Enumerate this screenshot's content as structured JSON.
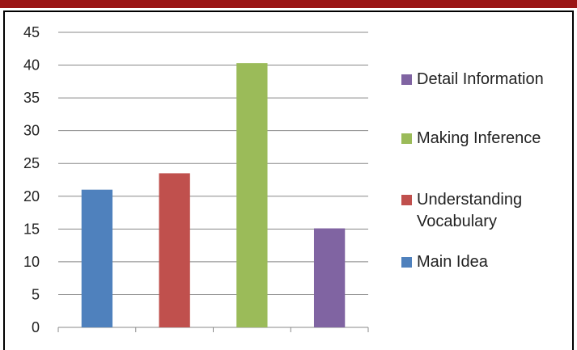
{
  "colors": {
    "top_bar": "#9b1515",
    "frame": "#000000",
    "grid": "#888888",
    "axis": "#888888"
  },
  "chart_data": {
    "type": "bar",
    "categories": [
      "Main Idea",
      "Understanding Vocabulary",
      "Making Inference",
      "Detail Information"
    ],
    "values": [
      21,
      23.5,
      40.3,
      15.1
    ],
    "colors": [
      "#4f81bd",
      "#c0504d",
      "#9bbb59",
      "#8064a2"
    ],
    "ylim": [
      0,
      45
    ],
    "yticks": [
      "0",
      "5",
      "10",
      "15",
      "20",
      "25",
      "30",
      "35",
      "40",
      "45"
    ],
    "grid": true,
    "legend_position": "right",
    "legend": [
      {
        "label": "Detail Information",
        "color": "#8064a2"
      },
      {
        "label": "Making Inference",
        "color": "#9bbb59"
      },
      {
        "label": "Understanding Vocabulary",
        "color": "#c0504d"
      },
      {
        "label": "Main Idea",
        "color": "#4f81bd"
      }
    ]
  }
}
